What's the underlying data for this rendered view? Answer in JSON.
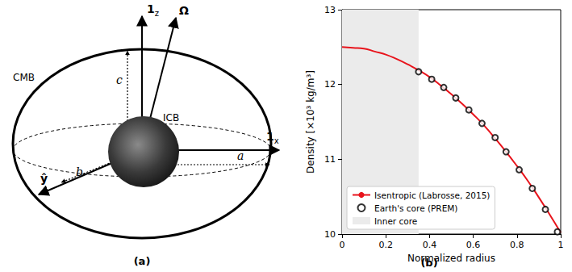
{
  "diagram": {
    "panel": "(a)",
    "outer_boundary": "CMB",
    "inner_boundary": "ICB",
    "axes": [
      {
        "label": "1",
        "subscript": "z"
      },
      {
        "label": "Ω"
      },
      {
        "label": "1",
        "subscript": "x"
      },
      {
        "label": "ŷ"
      }
    ],
    "semi_axes": [
      "a",
      "b",
      "c"
    ]
  },
  "chart_data": {
    "type": "line",
    "title": "(b)",
    "x_label": "Normalized radius",
    "y_label": "Density [×10³ kg/m³]",
    "xlim": [
      0,
      1
    ],
    "xticks": [
      0,
      0.2,
      0.4,
      0.6,
      0.8,
      1
    ],
    "ylim": [
      10,
      13
    ],
    "yticks": [
      10,
      11,
      12,
      13
    ],
    "grid": false,
    "legend": "lower left",
    "series": [
      {
        "name": "Isentropic (Labrosse, 2015)",
        "type": "line",
        "color": "#e8141c",
        "line_style": "solid",
        "x": [
          0,
          0.05,
          0.1,
          0.15,
          0.2,
          0.25,
          0.3,
          0.35,
          0.4,
          0.45,
          0.5,
          0.55,
          0.6,
          0.65,
          0.7,
          0.75,
          0.8,
          0.85,
          0.9,
          0.95,
          1
        ],
        "values": [
          12.5,
          12.49,
          12.48,
          12.44,
          12.4,
          12.34,
          12.27,
          12.19,
          12.1,
          11.99,
          11.87,
          11.74,
          11.6,
          11.45,
          11.28,
          11.1,
          10.91,
          10.71,
          10.49,
          10.26,
          10.02
        ]
      },
      {
        "name": "Earth's core (PREM)",
        "type": "scatter",
        "color": "#000000",
        "marker": "hollow circle",
        "x": [
          0.35,
          0.41,
          0.465,
          0.52,
          0.58,
          0.64,
          0.7,
          0.75,
          0.81,
          0.87,
          0.93,
          0.985
        ],
        "values": [
          12.17,
          12.07,
          11.96,
          11.82,
          11.66,
          11.48,
          11.29,
          11.1,
          10.86,
          10.61,
          10.33,
          10.03
        ]
      },
      {
        "name": "Inner core",
        "type": "span",
        "color": "#ebebeb",
        "x": [
          0,
          0.35
        ]
      }
    ]
  }
}
